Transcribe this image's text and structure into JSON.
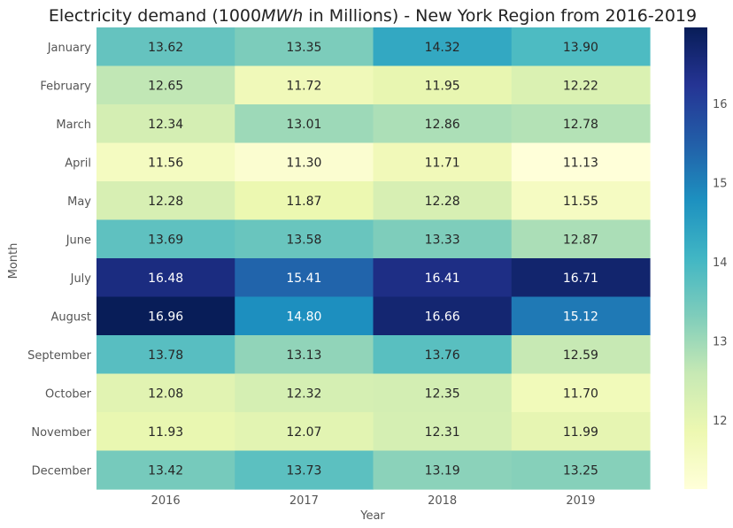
{
  "chart_data": {
    "type": "heatmap",
    "title_parts": [
      "Electricity demand (1000",
      "MWh",
      " in Millions) - New York Region from 2016-2019"
    ],
    "xlabel": "Year",
    "ylabel": "Month",
    "x": [
      "2016",
      "2017",
      "2018",
      "2019"
    ],
    "y": [
      "January",
      "February",
      "March",
      "April",
      "May",
      "June",
      "July",
      "August",
      "September",
      "October",
      "November",
      "December"
    ],
    "values": [
      [
        13.62,
        13.35,
        14.32,
        13.9
      ],
      [
        12.65,
        11.72,
        11.95,
        12.22
      ],
      [
        12.34,
        13.01,
        12.86,
        12.78
      ],
      [
        11.56,
        11.3,
        11.71,
        11.13
      ],
      [
        12.28,
        11.87,
        12.28,
        11.55
      ],
      [
        13.69,
        13.58,
        13.33,
        12.87
      ],
      [
        16.48,
        15.41,
        16.41,
        16.71
      ],
      [
        16.96,
        14.8,
        16.66,
        15.12
      ],
      [
        13.78,
        13.13,
        13.76,
        12.59
      ],
      [
        12.08,
        12.32,
        12.35,
        11.7
      ],
      [
        11.93,
        12.07,
        12.31,
        11.99
      ],
      [
        13.42,
        13.73,
        13.19,
        13.25
      ]
    ],
    "value_format": "2 decimals",
    "colormap": "YlGnBu",
    "colorbar": {
      "min": 11.13,
      "max": 16.96,
      "ticks": [
        12,
        13,
        14,
        15,
        16
      ]
    },
    "grid": false,
    "colors": {
      "low": "#ffffd9",
      "high": "#081d58",
      "text_dark": "#262626",
      "text_light": "#ffffff"
    }
  }
}
